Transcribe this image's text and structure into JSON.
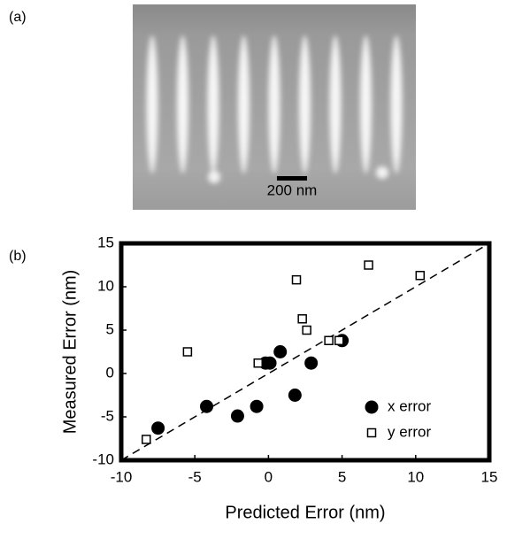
{
  "panel_a": {
    "label": "(a)",
    "scale_bar": "200 nm"
  },
  "panel_b": {
    "label": "(b)"
  },
  "chart_data": {
    "type": "scatter",
    "xlabel": "Predicted Error (nm)",
    "ylabel": "Measured Error (nm)",
    "xlim": [
      -10,
      15
    ],
    "ylim": [
      -10,
      15
    ],
    "xticks": [
      -10,
      -5,
      0,
      5,
      10,
      15
    ],
    "yticks": [
      -10,
      -5,
      0,
      5,
      10,
      15
    ],
    "legend": "lower right",
    "series": [
      {
        "name": "x error",
        "color": "#000000",
        "marker": "circle",
        "x": [
          -7.5,
          -4.2,
          -2.1,
          -0.8,
          -0.2,
          0.1,
          0.8,
          1.8,
          2.9,
          5.0
        ],
        "values": [
          -6.3,
          -3.8,
          -4.9,
          -3.8,
          1.2,
          1.2,
          2.5,
          -2.5,
          1.2,
          3.8
        ]
      },
      {
        "name": "y error",
        "color": "#000000",
        "marker": "square",
        "x": [
          -8.3,
          -5.5,
          -0.7,
          1.9,
          2.3,
          2.6,
          4.1,
          4.8,
          6.8,
          10.3
        ],
        "values": [
          -7.6,
          2.5,
          1.2,
          10.8,
          6.3,
          5.0,
          3.8,
          3.8,
          12.5,
          11.3
        ]
      }
    ]
  }
}
